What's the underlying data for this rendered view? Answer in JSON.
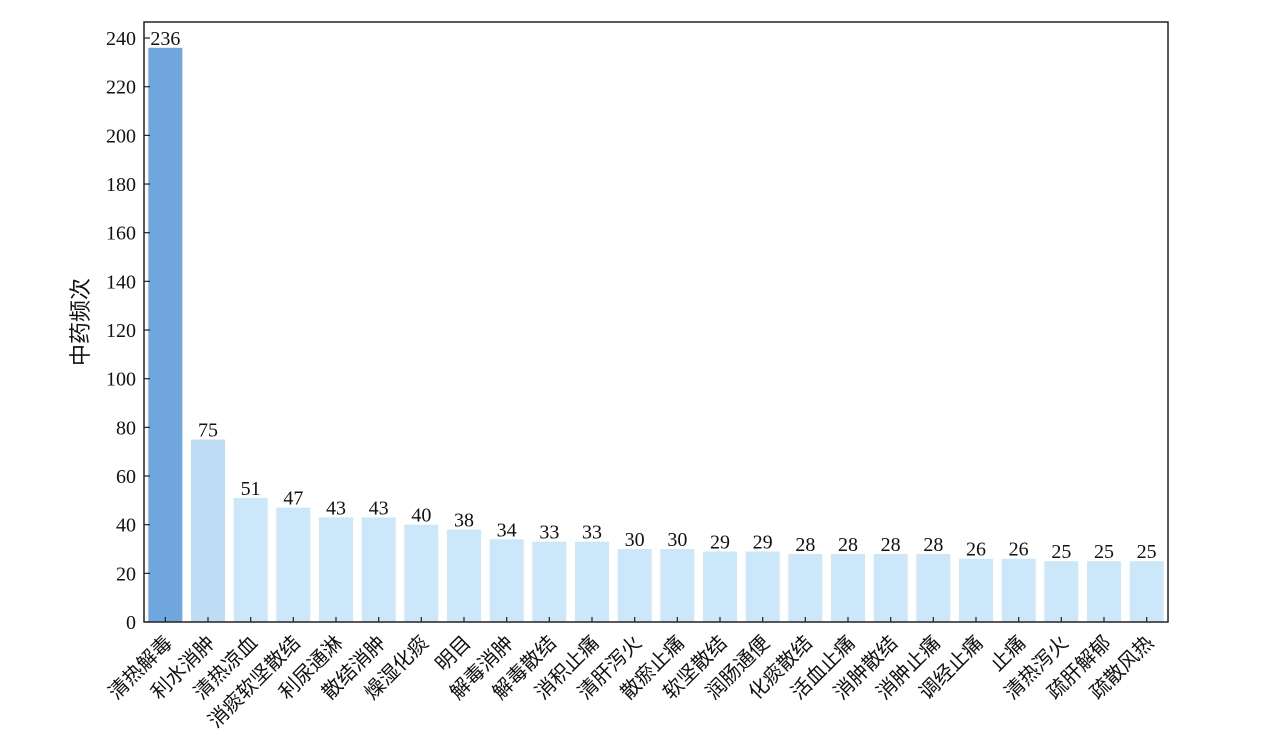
{
  "chart_data": {
    "type": "bar",
    "title": "",
    "xlabel": "",
    "ylabel": "中药频次",
    "ylim": [
      0,
      246.6
    ],
    "yticks": [
      0,
      20,
      40,
      60,
      80,
      100,
      120,
      140,
      160,
      180,
      200,
      220,
      240
    ],
    "grid": false,
    "categories": [
      "清热解毒",
      "利水消肿",
      "清热凉血",
      "消痰软坚散结",
      "利尿通淋",
      "散结消肿",
      "燥湿化痰",
      "明目",
      "解毒消肿",
      "解毒散结",
      "消积止痛",
      "清肝泻火",
      "散瘀止痛",
      "软坚散结",
      "润肠通便",
      "化痰散结",
      "活血止痛",
      "消肿散结",
      "消肿止痛",
      "调经止痛",
      "止痛",
      "清热泻火",
      "疏肝解郁",
      "疏散风热"
    ],
    "values": [
      236,
      75,
      51,
      47,
      43,
      43,
      40,
      38,
      34,
      33,
      33,
      30,
      30,
      29,
      29,
      28,
      28,
      28,
      28,
      26,
      26,
      25,
      25,
      25
    ],
    "colors": {
      "first": "#6fa6de",
      "second": "#bddcf5",
      "rest": "#cde7fa"
    }
  }
}
